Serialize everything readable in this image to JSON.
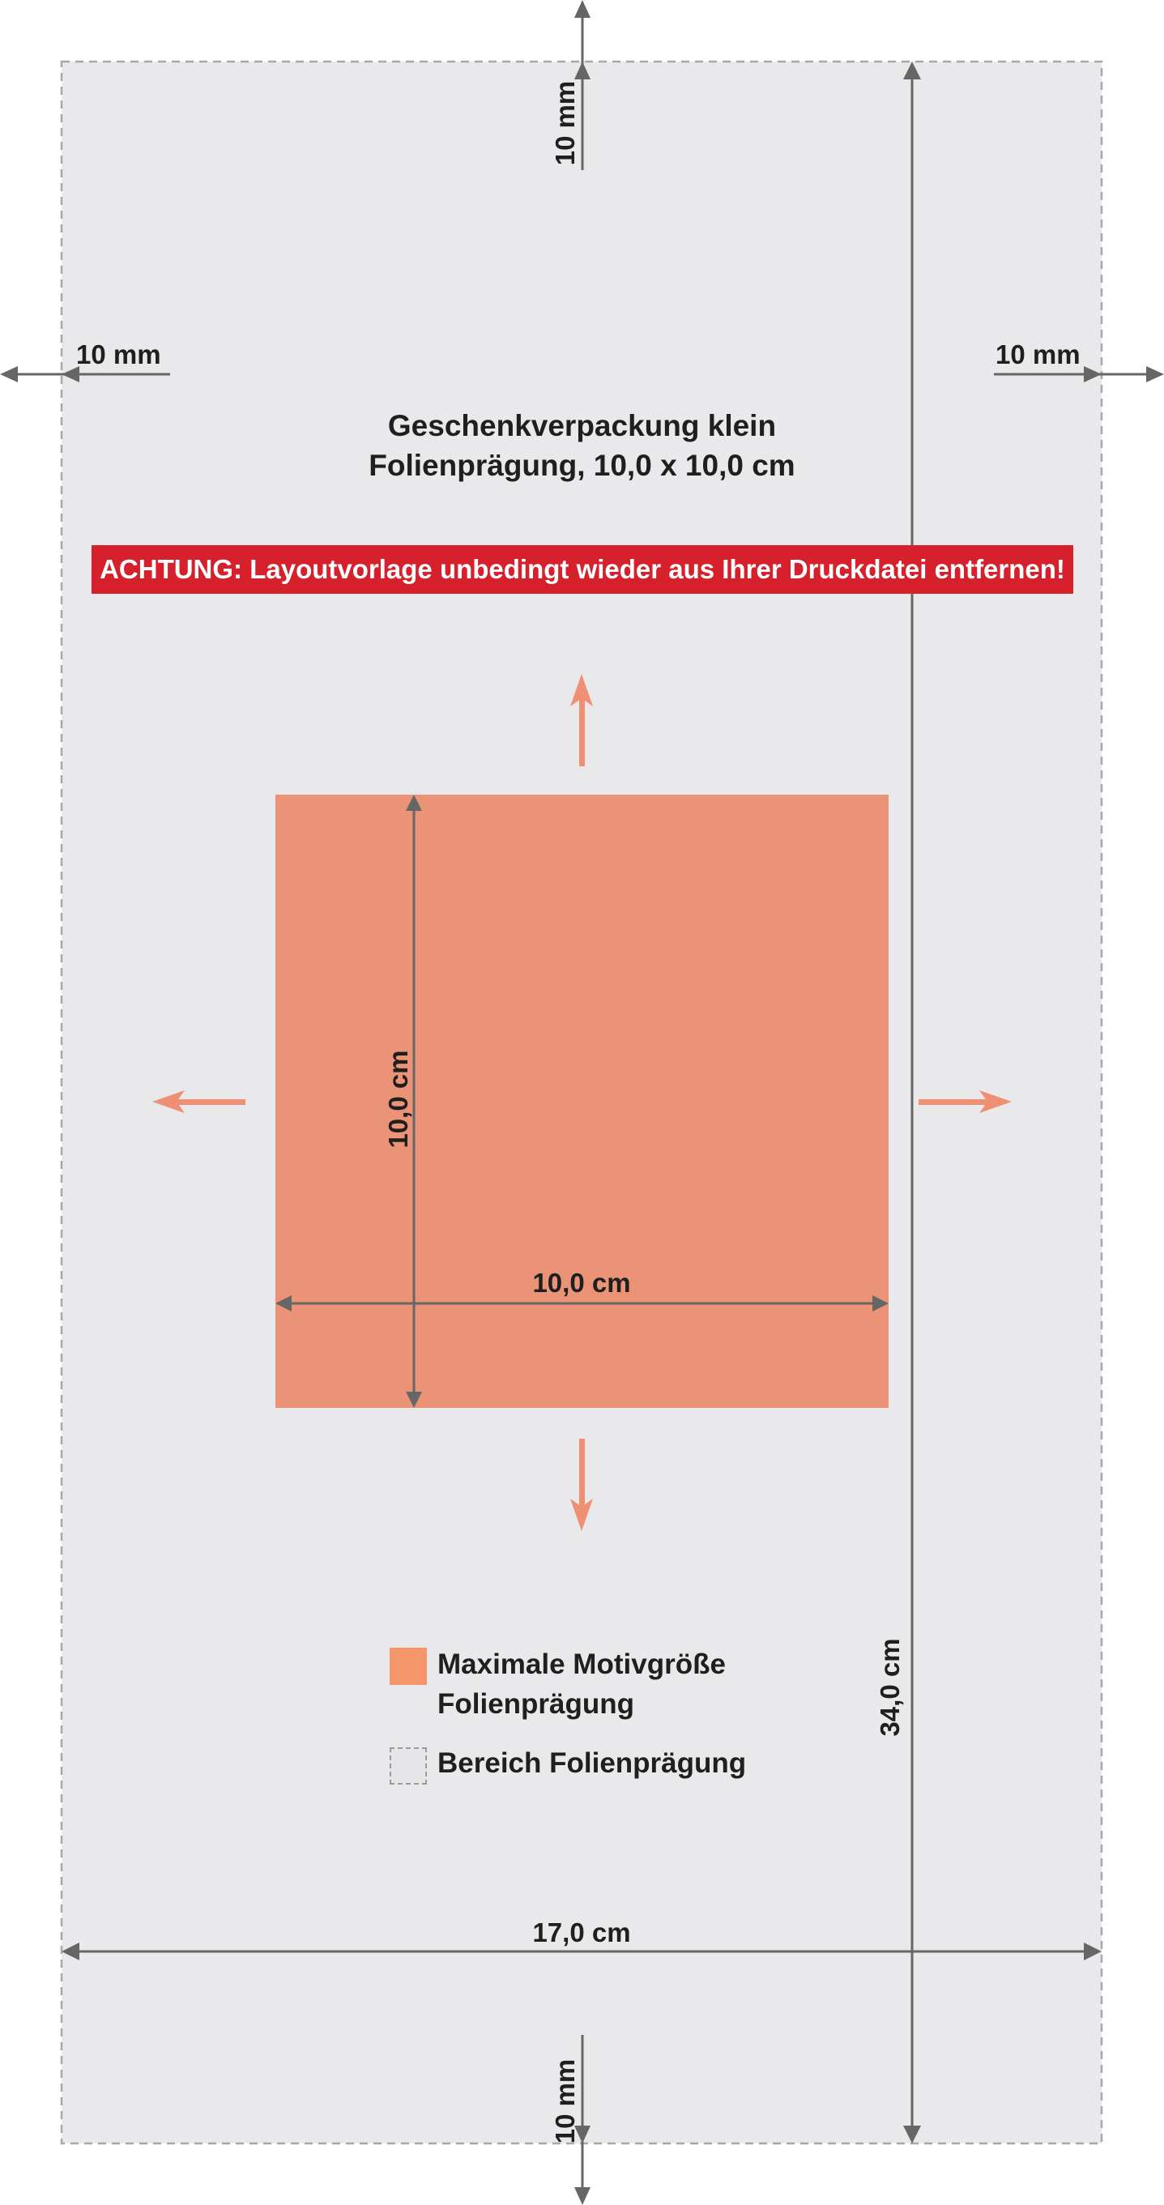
{
  "title": {
    "line1": "Geschenkverpackung klein",
    "line2": "Folienprägung, 10,0 x 10,0 cm"
  },
  "warning": "ACHTUNG: Layoutvorlage unbedingt wieder aus Ihrer Druckdatei entfernen!",
  "dimensions": {
    "margin_top": "10 mm",
    "margin_left": "10 mm",
    "margin_right": "10 mm",
    "margin_bottom": "10 mm",
    "motif_height": "10,0 cm",
    "motif_width": "10,0 cm",
    "total_width": "17,0 cm",
    "total_height": "34,0 cm"
  },
  "legend": {
    "items": [
      {
        "line1": "Maximale Motivgröße",
        "line2": "Folienprägung"
      },
      {
        "line1": "Bereich Folienprägung"
      }
    ]
  },
  "colors": {
    "background_area": "#e9e9eb",
    "border_dashed": "#a8a8a8",
    "motif": "#eb9377",
    "expand_arrows": "#ef8f73",
    "warning_bg": "#d6202b",
    "warning_text": "#ffffff",
    "dimension_lines": "#666666",
    "legend_swatch": "#f4956a"
  }
}
